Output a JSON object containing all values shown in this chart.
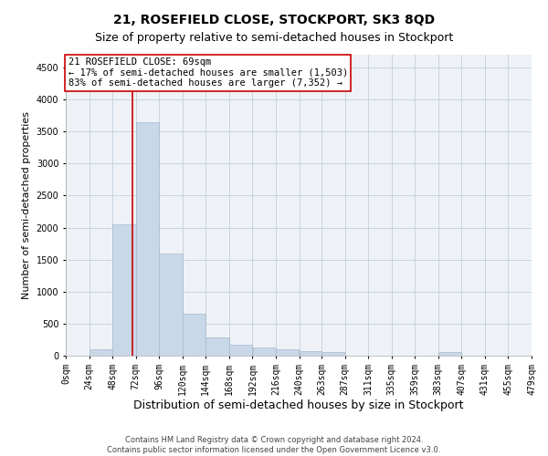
{
  "title": "21, ROSEFIELD CLOSE, STOCKPORT, SK3 8QD",
  "subtitle": "Size of property relative to semi-detached houses in Stockport",
  "xlabel": "Distribution of semi-detached houses by size in Stockport",
  "ylabel": "Number of semi-detached properties",
  "footer_line1": "Contains HM Land Registry data © Crown copyright and database right 2024.",
  "footer_line2": "Contains public sector information licensed under the Open Government Licence v3.0.",
  "bar_color": "#c8d8e8",
  "bar_edgecolor": "#a8b8cc",
  "grid_color": "#c8d4e0",
  "background_color": "#eef2f7",
  "property_size": 69,
  "property_line_color": "#cc0000",
  "annotation_text": "21 ROSEFIELD CLOSE: 69sqm\n← 17% of semi-detached houses are smaller (1,503)\n83% of semi-detached houses are larger (7,352) →",
  "annotation_box_color": "#cc0000",
  "bin_edges": [
    0,
    24,
    48,
    72,
    96,
    120,
    144,
    168,
    192,
    216,
    240,
    263,
    287,
    311,
    335,
    359,
    383,
    407,
    431,
    455,
    479
  ],
  "bar_values": [
    0,
    100,
    2050,
    3650,
    1600,
    650,
    280,
    165,
    135,
    100,
    65,
    50,
    0,
    0,
    0,
    0,
    50,
    0,
    0,
    0
  ],
  "ylim": [
    0,
    4700
  ],
  "yticks": [
    0,
    500,
    1000,
    1500,
    2000,
    2500,
    3000,
    3500,
    4000,
    4500
  ],
  "title_fontsize": 10,
  "subtitle_fontsize": 9,
  "xlabel_fontsize": 9,
  "ylabel_fontsize": 8,
  "tick_fontsize": 7,
  "annotation_fontsize": 7.5,
  "footer_fontsize": 6
}
